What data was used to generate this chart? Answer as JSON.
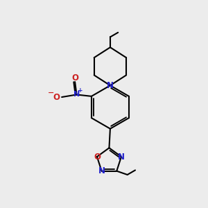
{
  "background_color": "#ececec",
  "bond_color": "#000000",
  "nitrogen_color": "#2222cc",
  "oxygen_color": "#cc2222",
  "line_width": 1.5,
  "figsize": [
    3.0,
    3.0
  ],
  "dpi": 100,
  "xlim": [
    0,
    10
  ],
  "ylim": [
    0,
    10
  ]
}
